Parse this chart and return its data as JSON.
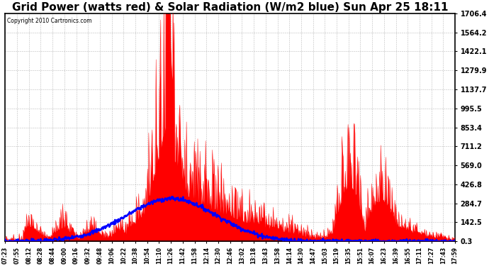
{
  "title": "Grid Power (watts red) & Solar Radiation (W/m2 blue) Sun Apr 25 18:11",
  "copyright": "Copyright 2010 Cartronics.com",
  "yticks": [
    0.3,
    142.5,
    284.7,
    426.8,
    569.0,
    711.2,
    853.4,
    995.5,
    1137.7,
    1279.9,
    1422.1,
    1564.2,
    1706.4
  ],
  "ylim": [
    0.3,
    1706.4
  ],
  "xtick_labels": [
    "07:23",
    "07:55",
    "08:12",
    "08:28",
    "08:44",
    "09:00",
    "09:16",
    "09:32",
    "09:48",
    "10:06",
    "10:22",
    "10:38",
    "10:54",
    "11:10",
    "11:26",
    "11:42",
    "11:58",
    "12:14",
    "12:30",
    "12:46",
    "13:02",
    "13:18",
    "13:43",
    "13:58",
    "14:14",
    "14:30",
    "14:47",
    "15:03",
    "15:19",
    "15:35",
    "15:51",
    "16:07",
    "16:23",
    "16:39",
    "16:55",
    "17:11",
    "17:27",
    "17:43",
    "17:59"
  ],
  "background_color": "#ffffff",
  "plot_bg_color": "#ffffff",
  "grid_color": "#aaaaaa",
  "title_fontsize": 11,
  "red_color": "#ff0000",
  "blue_color": "#0000ff",
  "n_points": 800,
  "solar_peak": 320,
  "solar_scale": 1.0,
  "grid_base_morning": 60,
  "grid_big_peak": 1706,
  "grid_afternoon_peak": 450
}
